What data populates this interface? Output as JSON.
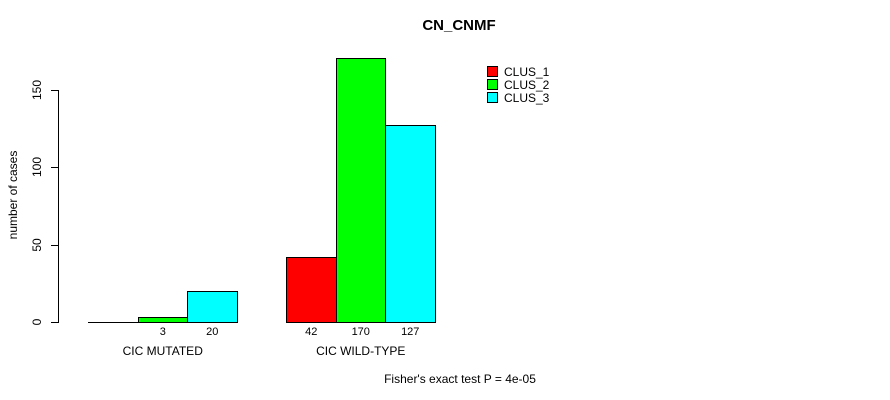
{
  "chart_data": {
    "type": "bar",
    "title": "CN_CNMF",
    "ylabel": "number of cases",
    "xlabel": "",
    "categories": [
      "CIC MUTATED",
      "CIC WILD-TYPE"
    ],
    "series": [
      {
        "name": "CLUS_1",
        "color": "#FF0000",
        "values": [
          0,
          42
        ]
      },
      {
        "name": "CLUS_2",
        "color": "#00FF00",
        "values": [
          3,
          170
        ]
      },
      {
        "name": "CLUS_3",
        "color": "#00FFFF",
        "values": [
          20,
          127
        ]
      }
    ],
    "bar_value_labels": [
      [
        "",
        "3",
        "20"
      ],
      [
        "42",
        "170",
        "127"
      ]
    ],
    "yticks": [
      0,
      50,
      100,
      150
    ],
    "ylim": [
      0,
      175
    ],
    "grid": false,
    "legend_position": "top-right",
    "bar_border_color": "#000000",
    "footnote": "Fisher's exact test P = 4e-05"
  }
}
